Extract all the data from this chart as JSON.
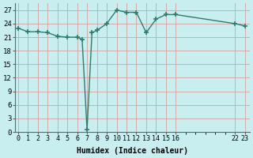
{
  "x": [
    0,
    1,
    2,
    3,
    4,
    5,
    6,
    6.5,
    7,
    7.5,
    8,
    9,
    10,
    11,
    12,
    13,
    14,
    15,
    16,
    22,
    23
  ],
  "y": [
    23,
    22.2,
    22.2,
    22,
    21.2,
    21,
    21,
    20.5,
    0.5,
    22,
    22.5,
    24,
    27,
    26.5,
    26.5,
    22,
    25,
    26,
    26,
    24,
    23.5
  ],
  "x_ticks": [
    0,
    1,
    2,
    3,
    4,
    5,
    6,
    7,
    8,
    9,
    10,
    11,
    12,
    13,
    14,
    15,
    16,
    22,
    23
  ],
  "x_tick_labels": [
    "0",
    "1",
    "2",
    "3",
    "4",
    "5",
    "6",
    "7",
    "8",
    "9",
    "10",
    "11",
    "12",
    "13",
    "14",
    "15",
    "16",
    "22",
    "23"
  ],
  "y_ticks": [
    0,
    3,
    6,
    9,
    12,
    15,
    18,
    21,
    24,
    27
  ],
  "ylim": [
    0,
    28.5
  ],
  "xlim": [
    -0.3,
    23.5
  ],
  "xlabel": "Humidex (Indice chaleur)",
  "line_color": "#2d7d6e",
  "bg_color": "#c8eef0",
  "grid_color_major": "#d4a0a0",
  "grid_color_minor": "#e0c0c0",
  "marker": "+",
  "marker_size": 5,
  "linewidth": 1.0
}
